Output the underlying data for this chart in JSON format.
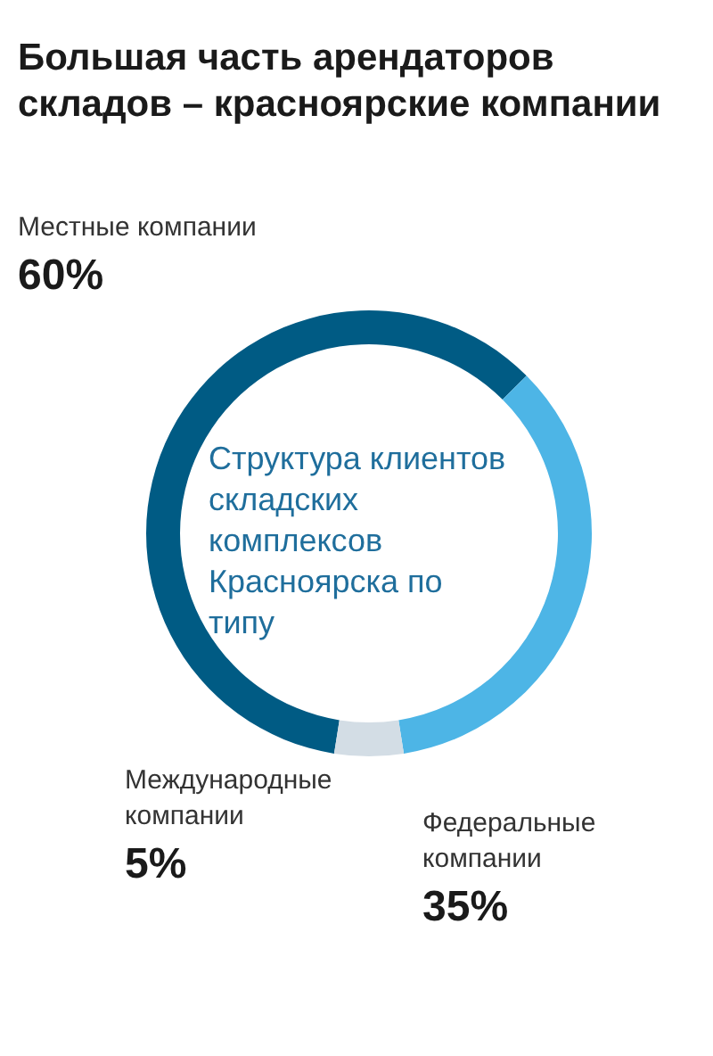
{
  "chart_data": {
    "type": "donut",
    "title": "Большая часть арендаторов складов – красноярские компании",
    "subtitle": "Структура клиентов складских комплексов Красноярска по типу",
    "categories": [
      "Местные компании",
      "Федеральные компании",
      "Международные компании"
    ],
    "values": [
      60,
      35,
      5
    ],
    "colors": [
      "#005b84",
      "#4db5e6",
      "#d3dde5"
    ],
    "value_labels": [
      "60%",
      "35%",
      "5%"
    ]
  }
}
